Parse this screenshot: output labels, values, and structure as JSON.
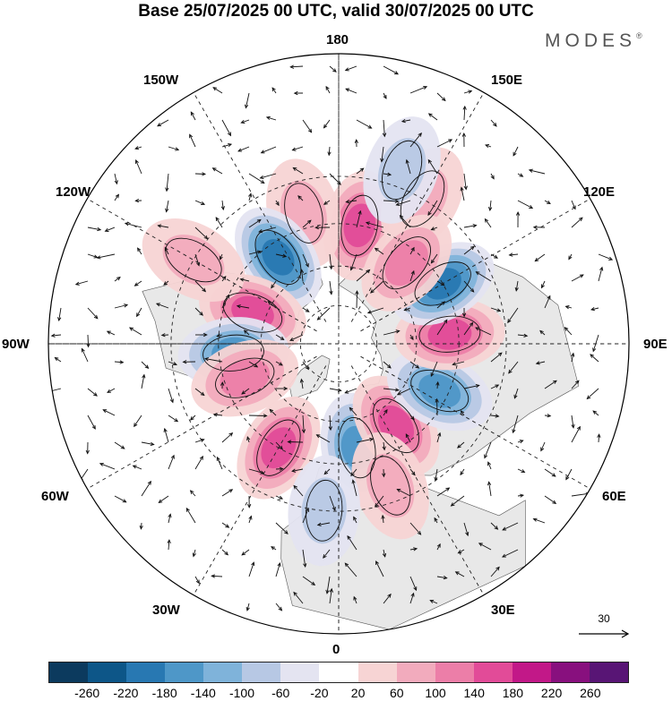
{
  "title": "Base 25/07/2025 00 UTC, valid 30/07/2025 00 UTC",
  "brand": "MODES",
  "brand_mark": "®",
  "longitude_labels": {
    "lon_180": "180",
    "lon_150W": "150W",
    "lon_150E": "150E",
    "lon_120W": "120W",
    "lon_120E": "120E",
    "lon_90W": "90W",
    "lon_90E": "90E",
    "lon_60W": "60W",
    "lon_60E": "60E",
    "lon_30W": "30W",
    "lon_30E": "30E",
    "lon_0": "0"
  },
  "reference_vector": {
    "label": "30"
  },
  "colorbar": {
    "colors": [
      "#0c3a5e",
      "#0d5688",
      "#2878b2",
      "#4e97c8",
      "#7fb3da",
      "#b7c8e4",
      "#e4e4f1",
      "#ffffff",
      "#f7d4d4",
      "#f2abbd",
      "#ec7ea8",
      "#e24b98",
      "#c21888",
      "#88107e",
      "#581575"
    ],
    "ticks": [
      "-260",
      "-220",
      "-180",
      "-140",
      "-100",
      "-60",
      "-20",
      "20",
      "60",
      "100",
      "140",
      "180",
      "220",
      "260"
    ]
  },
  "anomaly_field": {
    "land_color": "#e8e8e8",
    "centers": [
      {
        "name": "positive-anomaly-kamchatka",
        "lon": 170,
        "lat": 45,
        "value": 150
      },
      {
        "name": "positive-anomaly-bering-sea",
        "lon": -165,
        "lat": 40,
        "value": 60
      },
      {
        "name": "positive-anomaly-north-pacific-east",
        "lon": 150,
        "lat": 30,
        "value": 60
      },
      {
        "name": "negative-anomaly-alaska-gulf",
        "lon": -145,
        "lat": 50,
        "value": -170
      },
      {
        "name": "positive-anomaly-canada-west",
        "lon": -110,
        "lat": 55,
        "value": 150
      },
      {
        "name": "negative-anomaly-hudson-bay",
        "lon": -85,
        "lat": 50,
        "value": -150
      },
      {
        "name": "positive-anomaly-labrador",
        "lon": -70,
        "lat": 52,
        "value": 90
      },
      {
        "name": "positive-anomaly-north-atlantic",
        "lon": -30,
        "lat": 45,
        "value": 130
      },
      {
        "name": "negative-anomaly-western-europe",
        "lon": 10,
        "lat": 50,
        "value": -120
      },
      {
        "name": "positive-anomaly-eastern-europe",
        "lon": 35,
        "lat": 52,
        "value": 140
      },
      {
        "name": "negative-anomaly-central-asia",
        "lon": 65,
        "lat": 48,
        "value": -120
      },
      {
        "name": "positive-anomaly-siberia",
        "lon": 95,
        "lat": 48,
        "value": 120
      },
      {
        "name": "negative-anomaly-east-asia",
        "lon": 120,
        "lat": 45,
        "value": -170
      },
      {
        "name": "positive-anomaly-okhotsk",
        "lon": 140,
        "lat": 50,
        "value": 110
      },
      {
        "name": "positive-anomaly-eastern-pacific",
        "lon": -120,
        "lat": 30,
        "value": 70
      },
      {
        "name": "negative-anomaly-west-pacific",
        "lon": 160,
        "lat": 25,
        "value": -40
      },
      {
        "name": "positive-anomaly-mediterranean",
        "lon": 20,
        "lat": 35,
        "value": 40
      },
      {
        "name": "negative-anomaly-north-africa",
        "lon": -5,
        "lat": 30,
        "value": -40
      }
    ]
  }
}
